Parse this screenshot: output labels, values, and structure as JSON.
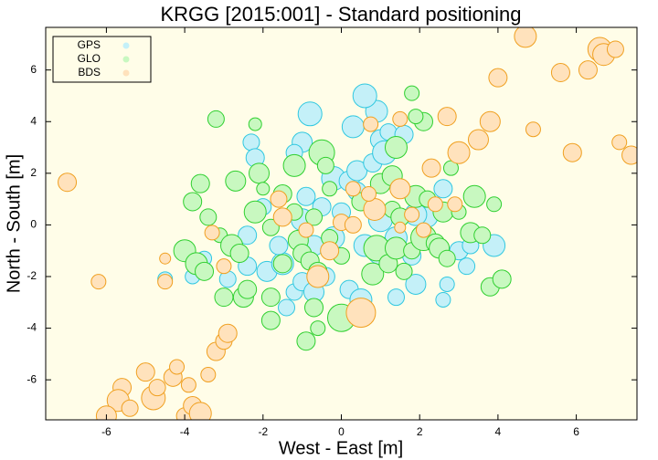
{
  "chart_data": {
    "type": "bubble",
    "title": "KRGG [2015:001] - Standard positioning",
    "x_label": "West - East [m]",
    "y_label": "North - South [m]",
    "xlim": [
      -7.55,
      7.55
    ],
    "ylim": [
      -7.55,
      7.65
    ],
    "xticks": [
      -6,
      -4,
      -2,
      0,
      2,
      4,
      6
    ],
    "yticks": [
      -6,
      -4,
      -2,
      0,
      2,
      4,
      6
    ],
    "legend": "top-left",
    "background": "#fffde8",
    "series": [
      {
        "name": "GPS",
        "color": "#30c8e0",
        "fill": "#c4f0f8",
        "x": [
          -4.5,
          -3.8,
          -2.4,
          -1.9,
          -1.5,
          -1.2,
          -1,
          -0.7,
          -0.4,
          0.2,
          0.5,
          -0.2,
          0,
          -0.5,
          -1,
          -0.2,
          0.2,
          0.4,
          0.3,
          -0.8,
          -1,
          -1.2,
          -0.9,
          0.4,
          0.8,
          1,
          1.1,
          0.9,
          0.6,
          1.2,
          1.6,
          -2.3,
          -2.2,
          -2,
          -1.6,
          0.6,
          1,
          1.4,
          1.8,
          1.9,
          1.4,
          2.7,
          2.6,
          3,
          3.3,
          3.9,
          3.2,
          2.2,
          1.9,
          -0.7,
          2.6,
          -2.9,
          -3.5,
          1,
          -2.4,
          -1.4
        ],
        "values": [
          -2.1,
          -2,
          -1.6,
          -1.8,
          -1.5,
          -2.6,
          -2.2,
          -2.6,
          -2,
          -2.5,
          -2.9,
          -0.5,
          0.5,
          0.7,
          0.2,
          1.8,
          1.7,
          1.3,
          3.8,
          4.3,
          3.2,
          2.8,
          1.1,
          2.1,
          2.4,
          3.3,
          2.8,
          4.4,
          5,
          3.6,
          3.5,
          3.2,
          2.6,
          0.7,
          -0.8,
          -0.8,
          -1,
          -0.5,
          -1.2,
          -2.3,
          -2.8,
          -2.3,
          -2.9,
          -1,
          -0.8,
          -0.8,
          -1.6,
          0.3,
          0.4,
          -0.8,
          1.4,
          -2.1,
          -1.3,
          0.2,
          -0.4,
          -3.2
        ],
        "sizes": [
          8,
          8,
          10,
          11,
          12,
          9,
          10,
          11,
          10,
          10,
          12,
          12,
          10,
          10,
          12,
          13,
          11,
          10,
          12,
          13,
          11,
          9,
          10,
          11,
          10,
          11,
          13,
          12,
          13,
          9,
          10,
          9,
          10,
          9,
          10,
          12,
          15,
          12,
          10,
          11,
          9,
          8,
          8,
          10,
          9,
          12,
          9,
          11,
          12,
          11,
          10,
          9,
          8,
          13,
          10,
          9
        ]
      },
      {
        "name": "GLO",
        "color": "#30d030",
        "fill": "#c8f8c0",
        "x": [
          -4,
          -3.8,
          -3.7,
          -3.5,
          -3.6,
          -3.2,
          -3.4,
          -3.1,
          -2.8,
          -2.7,
          -2.6,
          -2.5,
          -2.4,
          -2.2,
          -2.1,
          -2.2,
          -2,
          -1.8,
          -1.8,
          -1.8,
          -1.5,
          -1.5,
          -1.2,
          -1.2,
          -1.1,
          -1,
          -0.8,
          -0.7,
          -0.6,
          -0.5,
          -0.6,
          -0.3,
          -0.3,
          -0.9,
          -0.7,
          0,
          0,
          0.5,
          0.8,
          0.9,
          1,
          1.2,
          1.3,
          1.4,
          1.5,
          1.6,
          1.8,
          1.9,
          2.1,
          2.1,
          1.9,
          1.8,
          1.4,
          2.2,
          2.4,
          2.5,
          2.6,
          2.7,
          2.8,
          3,
          3.3,
          3.4,
          3.6,
          3.8,
          3.9,
          4.1,
          1.3,
          -3,
          -0.4
        ],
        "values": [
          -1,
          0.9,
          -1.5,
          -1.8,
          1.6,
          4.1,
          0.3,
          -0.4,
          -0.8,
          1.7,
          -1.1,
          -2.8,
          -2.5,
          0.5,
          2,
          3.9,
          1.4,
          -0.1,
          -2.8,
          -3.7,
          1.2,
          -1.5,
          2.3,
          0.5,
          -0.6,
          -1.1,
          -1.4,
          -3.2,
          -4,
          2.8,
          -1.8,
          1.4,
          -0.5,
          -4.5,
          0.3,
          -1.2,
          -3.6,
          0.9,
          -1.9,
          -0.9,
          1.6,
          -1.5,
          0.6,
          -0.9,
          0.3,
          -1.8,
          -1,
          1.1,
          -0.5,
          4,
          4.2,
          5.1,
          3,
          1,
          -0.7,
          -0.9,
          0.5,
          -1.3,
          2.2,
          0.5,
          -0.3,
          1.1,
          -0.4,
          -2.4,
          0.8,
          -2.1,
          1.9,
          -2.8,
          2.3
        ],
        "sizes": [
          12,
          10,
          12,
          10,
          10,
          9,
          9,
          8,
          12,
          11,
          10,
          11,
          10,
          12,
          11,
          7,
          7,
          9,
          10,
          10,
          10,
          10,
          12,
          9,
          11,
          10,
          10,
          10,
          8,
          14,
          10,
          8,
          9,
          10,
          9,
          9,
          15,
          10,
          12,
          14,
          11,
          10,
          9,
          12,
          10,
          9,
          9,
          12,
          14,
          10,
          8,
          8,
          12,
          9,
          10,
          11,
          11,
          9,
          8,
          8,
          11,
          12,
          9,
          10,
          8,
          10,
          11,
          10,
          9
        ]
      },
      {
        "name": "BDS",
        "color": "#f0a020",
        "fill": "#ffe2bc",
        "x": [
          -7,
          -6.2,
          -5.6,
          -5.7,
          -6,
          -5.4,
          -5,
          -4.8,
          -4.7,
          -4.3,
          -4.2,
          -4,
          -3.8,
          -3.6,
          -3.9,
          -3.4,
          -3.2,
          -3,
          -2.9,
          -4.5,
          -4.5,
          -3.3,
          -3,
          -1.5,
          -1.6,
          -0.6,
          -0.3,
          -0.9,
          0.5,
          0,
          0.3,
          0.85,
          0.7,
          1.5,
          1.5,
          0.75,
          1.8,
          1.5,
          2.1,
          2.3,
          2.4,
          2.7,
          3,
          3.5,
          3.8,
          4,
          4.7,
          4.9,
          5.6,
          5.9,
          6.3,
          6.6,
          6.7,
          7,
          7.1,
          7.4,
          2.9,
          0.3
        ],
        "values": [
          1.65,
          -2.2,
          -6.3,
          -6.8,
          -7.4,
          -7.1,
          -5.7,
          -6.7,
          -6.3,
          -5.9,
          -5.5,
          -7.4,
          -7,
          -7.3,
          -6.2,
          -5.8,
          -4.9,
          -4.5,
          -4.2,
          -2.2,
          -1.3,
          -0.3,
          -1.6,
          0.3,
          1,
          -2,
          -1,
          -0.2,
          -3.4,
          0.1,
          0,
          0.6,
          1.2,
          1.4,
          4.1,
          3.9,
          0.4,
          -0.1,
          -0.2,
          2.2,
          0.8,
          4.2,
          2.8,
          3.3,
          4,
          5.7,
          7.3,
          3.7,
          5.9,
          2.8,
          6,
          6.8,
          6.6,
          6.8,
          3.2,
          2.7,
          0.8,
          1.4
        ],
        "sizes": [
          10,
          8,
          10,
          12,
          11,
          9,
          10,
          13,
          9,
          10,
          8,
          9,
          10,
          12,
          8,
          8,
          10,
          9,
          10,
          8,
          6,
          8,
          8,
          10,
          9,
          12,
          10,
          8,
          16,
          9,
          9,
          12,
          8,
          11,
          8,
          8,
          8,
          6,
          8,
          10,
          8,
          10,
          12,
          11,
          11,
          10,
          12,
          8,
          10,
          10,
          10,
          13,
          12,
          9,
          8,
          10,
          8,
          8
        ]
      }
    ]
  }
}
